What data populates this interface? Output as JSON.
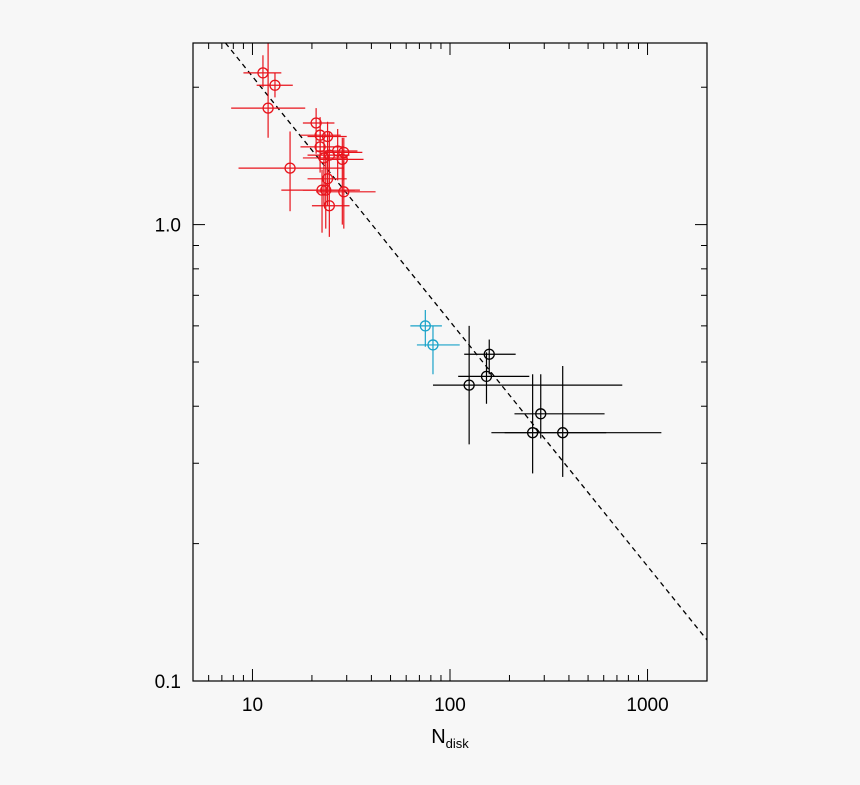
{
  "chart_data": {
    "type": "scatter",
    "title": "",
    "xlabel": "N",
    "xlabel_subscript": "disk",
    "ylabel": "",
    "x_scale": "log",
    "y_scale": "log",
    "xlim": [
      5,
      2000
    ],
    "ylim": [
      0.1,
      2.5
    ],
    "x_ticks": [
      10,
      100,
      1000
    ],
    "x_tick_labels": [
      "10",
      "100",
      "1000"
    ],
    "y_ticks": [
      0.1,
      1.0
    ],
    "y_tick_labels": [
      "0.1",
      "1.0"
    ],
    "grid": false,
    "legend": "none",
    "fit_line": {
      "style": "dashed",
      "color": "#000000",
      "points": [
        [
          7.3,
          2.5
        ],
        [
          2000,
          0.123
        ]
      ]
    },
    "series": [
      {
        "color": "#e8141c",
        "points": [
          {
            "x": 11.3,
            "y": 2.15,
            "xerr": [
              9.0,
              14.0
            ],
            "yerr": [
              2.0,
              2.35
            ]
          },
          {
            "x": 13.0,
            "y": 2.02,
            "xerr": [
              10.5,
              16.0
            ],
            "yerr": [
              1.9,
              2.15
            ]
          },
          {
            "x": 12.0,
            "y": 1.8,
            "xerr": [
              7.8,
              18.5
            ],
            "yerr": [
              1.55,
              2.55
            ]
          },
          {
            "x": 21.0,
            "y": 1.67,
            "xerr": [
              18.0,
              26.0
            ],
            "yerr": [
              1.43,
              1.8
            ]
          },
          {
            "x": 22.0,
            "y": 1.57,
            "xerr": [
              17.5,
              28.0
            ],
            "yerr": [
              1.4,
              1.72
            ]
          },
          {
            "x": 24.0,
            "y": 1.56,
            "xerr": [
              19.0,
              30.0
            ],
            "yerr": [
              1.3,
              1.68
            ]
          },
          {
            "x": 22.0,
            "y": 1.48,
            "xerr": [
              17.5,
              29.0
            ],
            "yerr": [
              1.3,
              1.65
            ]
          },
          {
            "x": 27.0,
            "y": 1.45,
            "xerr": [
              21.0,
              34.0
            ],
            "yerr": [
              1.25,
              1.62
            ]
          },
          {
            "x": 29.0,
            "y": 1.44,
            "xerr": [
              23.0,
              36.0
            ],
            "yerr": [
              1.25,
              1.55
            ]
          },
          {
            "x": 24.5,
            "y": 1.42,
            "xerr": [
              19.0,
              31.0
            ],
            "yerr": [
              1.2,
              1.6
            ]
          },
          {
            "x": 23.0,
            "y": 1.4,
            "xerr": [
              18.0,
              30.0
            ],
            "yerr": [
              1.1,
              1.55
            ]
          },
          {
            "x": 28.5,
            "y": 1.39,
            "xerr": [
              22.0,
              36.5
            ],
            "yerr": [
              1.0,
              1.55
            ]
          },
          {
            "x": 15.5,
            "y": 1.33,
            "xerr": [
              8.5,
              29.0
            ],
            "yerr": [
              1.07,
              1.6
            ]
          },
          {
            "x": 24.0,
            "y": 1.26,
            "xerr": [
              19.0,
              30.0
            ],
            "yerr": [
              1.1,
              1.45
            ]
          },
          {
            "x": 22.5,
            "y": 1.19,
            "xerr": [
              14.0,
              33.0
            ],
            "yerr": [
              0.96,
              1.32
            ]
          },
          {
            "x": 23.5,
            "y": 1.19,
            "xerr": [
              18.0,
              35.0
            ],
            "yerr": [
              0.98,
              1.42
            ]
          },
          {
            "x": 29.0,
            "y": 1.18,
            "xerr": [
              21.0,
              42.0
            ],
            "yerr": [
              0.98,
              1.38
            ]
          },
          {
            "x": 24.5,
            "y": 1.1,
            "xerr": [
              20.0,
              31.0
            ],
            "yerr": [
              0.94,
              1.25
            ]
          }
        ]
      },
      {
        "color": "#1aa3c9",
        "points": [
          {
            "x": 75,
            "y": 0.6,
            "xerr": [
              63,
              91
            ],
            "yerr": [
              0.54,
              0.65
            ]
          },
          {
            "x": 82,
            "y": 0.545,
            "xerr": [
              68,
              112
            ],
            "yerr": [
              0.47,
              0.6
            ]
          }
        ]
      },
      {
        "color": "#000000",
        "points": [
          {
            "x": 158,
            "y": 0.52,
            "xerr": [
              118,
              215
            ],
            "yerr": [
              0.47,
              0.56
            ]
          },
          {
            "x": 153,
            "y": 0.465,
            "xerr": [
              110,
              252
            ],
            "yerr": [
              0.405,
              0.525
            ]
          },
          {
            "x": 125,
            "y": 0.445,
            "xerr": [
              82,
              745
            ],
            "yerr": [
              0.33,
              0.6
            ]
          },
          {
            "x": 288,
            "y": 0.385,
            "xerr": [
              212,
              606
            ],
            "yerr": [
              0.34,
              0.47
            ]
          },
          {
            "x": 262,
            "y": 0.35,
            "xerr": [
              189,
              618
            ],
            "yerr": [
              0.285,
              0.47
            ]
          },
          {
            "x": 372,
            "y": 0.35,
            "xerr": [
              162,
              1175
            ],
            "yerr": [
              0.28,
              0.49
            ]
          }
        ]
      }
    ]
  }
}
